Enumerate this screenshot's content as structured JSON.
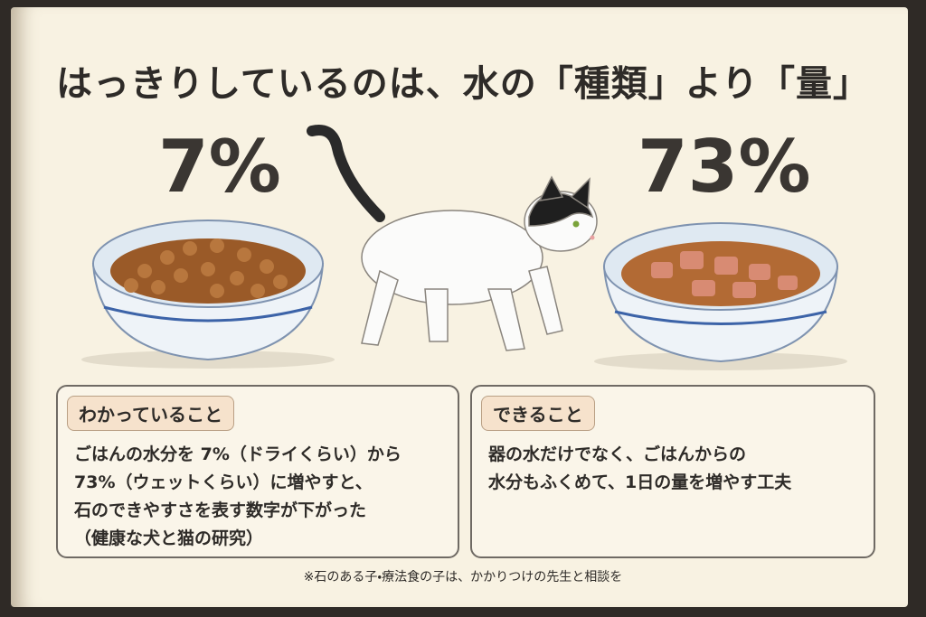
{
  "title": "はっきりしているのは、水の「種類」より「量」",
  "panels": [
    {
      "percent": "7%",
      "heading": "わかっていること",
      "lines": [
        "ごはんの水分を 7%（ドライくらい）から",
        "73%（ウェットくらい）に増やすと、",
        "石のできやすさを表す数字が下がった",
        "（健康な犬と猫の研究）"
      ]
    },
    {
      "percent": "73%",
      "heading": "できること",
      "lines": [
        "器の水だけでなく、ごはんからの",
        "水分もふくめて、1日の量を増やす工夫"
      ]
    }
  ],
  "footnote": "※石のある子・療法食の子は、かかりつけの先生と相談を"
}
